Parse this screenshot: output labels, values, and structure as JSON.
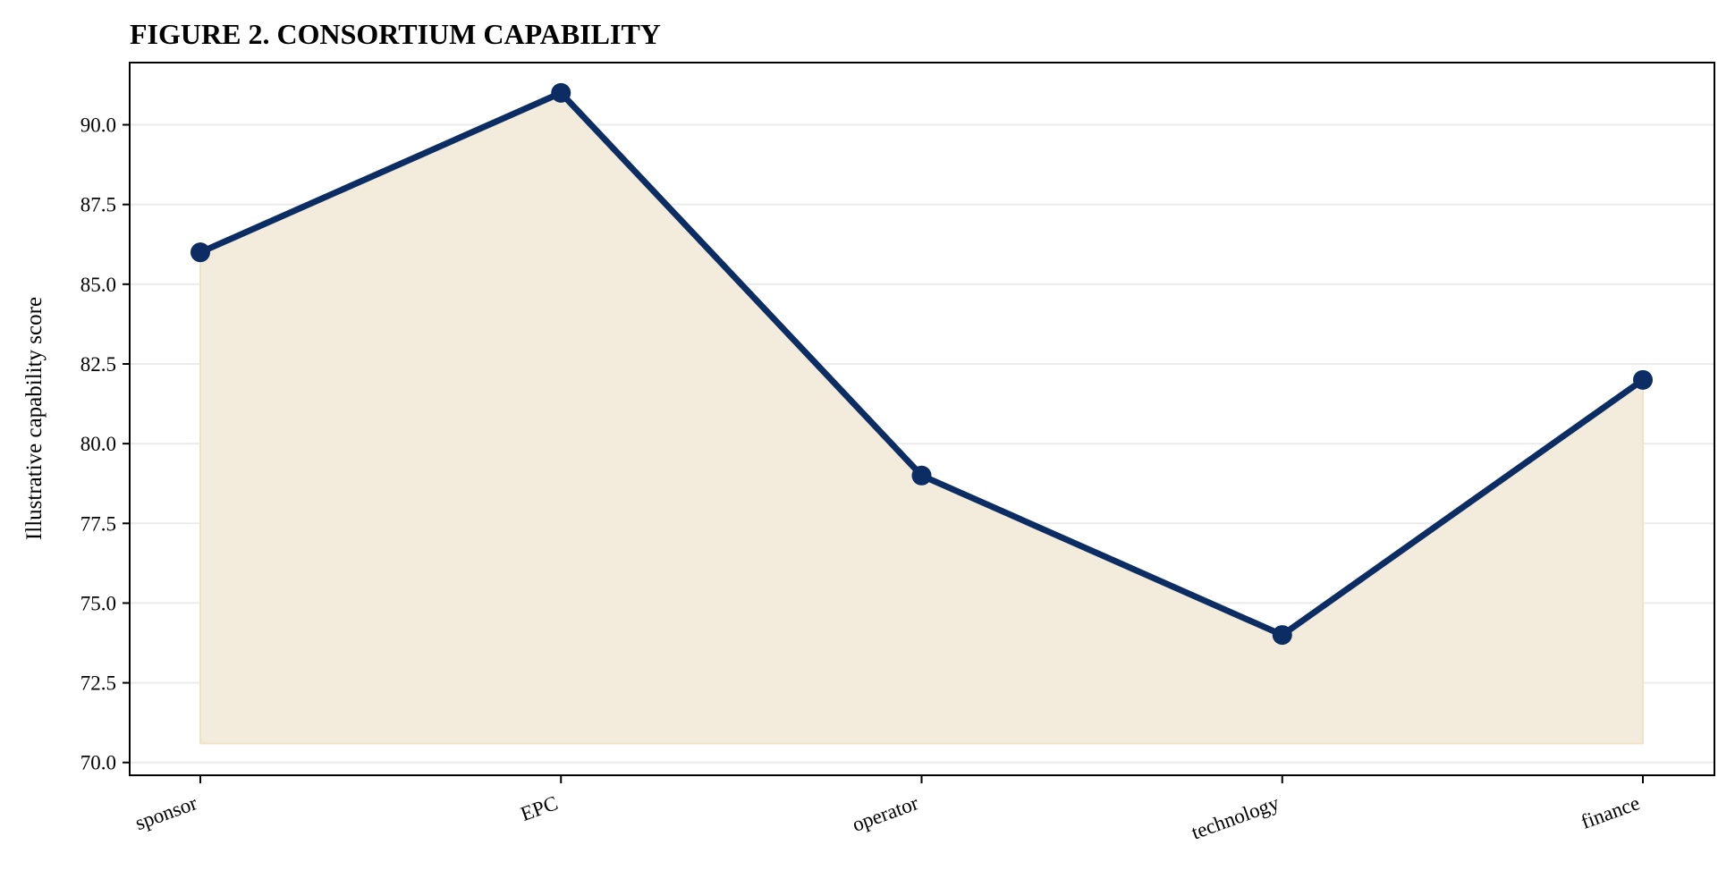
{
  "chart_data": {
    "type": "area",
    "title": "FIGURE 2. CONSORTIUM CAPABILITY",
    "xlabel": "",
    "ylabel": "Illustrative capability score",
    "categories": [
      "sponsor",
      "EPC",
      "operator",
      "technology",
      "finance"
    ],
    "series": [
      {
        "values": [
          86,
          91,
          79,
          74,
          82
        ]
      }
    ],
    "fill_baseline": 70.6,
    "ylim": [
      69.6,
      91.95
    ],
    "yticks": [
      70.0,
      72.5,
      75.0,
      77.5,
      80.0,
      82.5,
      85.0,
      87.5,
      90.0
    ],
    "ytick_labels": [
      "70.0",
      "72.5",
      "75.0",
      "77.5",
      "80.0",
      "82.5",
      "85.0",
      "87.5",
      "90.0"
    ],
    "grid": "horizontal",
    "colors": {
      "line": "#0b2d63",
      "fill": "#f3ebdb",
      "fill_edge": "#efe2c6",
      "grid": "#ebebeb"
    }
  }
}
